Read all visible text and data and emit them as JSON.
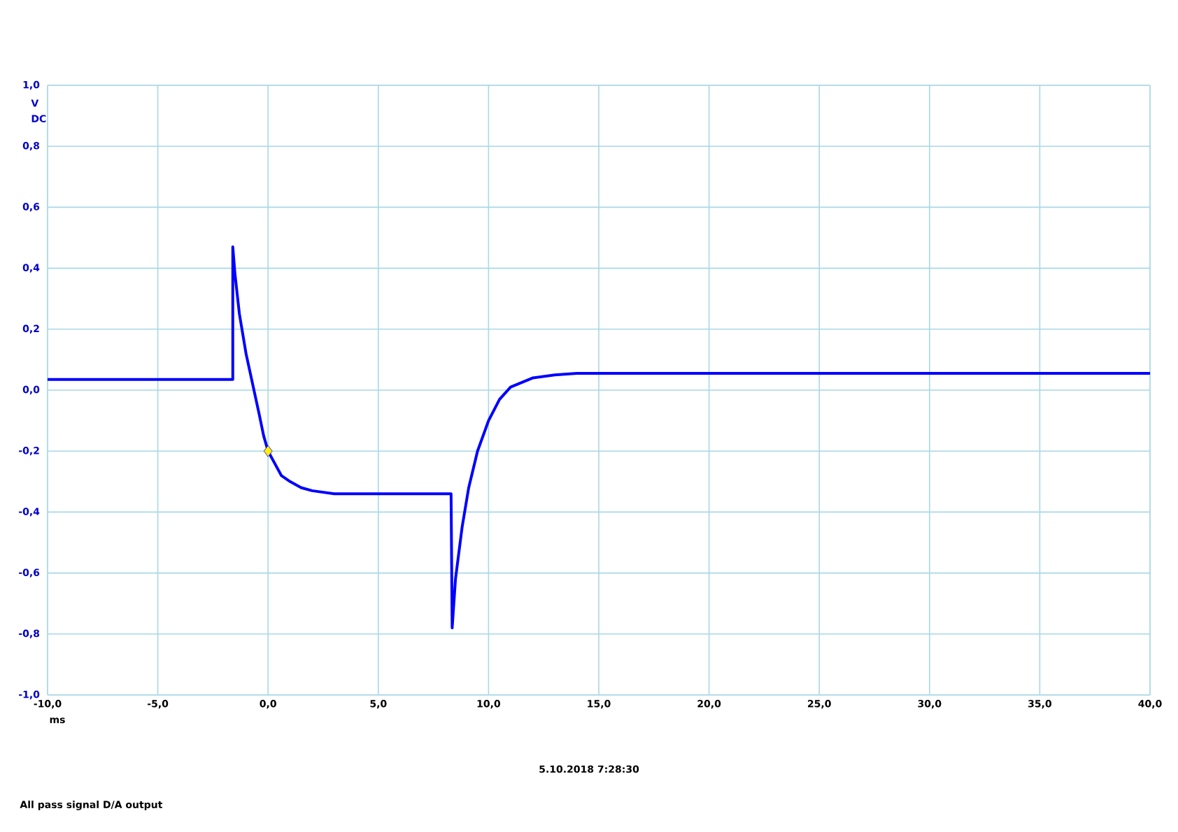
{
  "chart_data": {
    "type": "line",
    "xlabel": "ms",
    "ylabel": "V",
    "annotations": [
      "DC",
      "5.10.2018 7:28:30",
      "All pass signal D/A output"
    ],
    "xlim": [
      -10,
      40
    ],
    "ylim": [
      -1,
      1
    ],
    "xticks": [
      {
        "value": -10,
        "label": "-10,0"
      },
      {
        "value": -5,
        "label": "-5,0"
      },
      {
        "value": 0,
        "label": "0,0"
      },
      {
        "value": 5,
        "label": "5,0"
      },
      {
        "value": 10,
        "label": "10,0"
      },
      {
        "value": 15,
        "label": "15,0"
      },
      {
        "value": 20,
        "label": "20,0"
      },
      {
        "value": 25,
        "label": "25,0"
      },
      {
        "value": 30,
        "label": "30,0"
      },
      {
        "value": 35,
        "label": "35,0"
      },
      {
        "value": 40,
        "label": "40,0"
      }
    ],
    "yticks": [
      {
        "value": -1,
        "label": "-1,0"
      },
      {
        "value": -0.8,
        "label": "-0,8"
      },
      {
        "value": -0.6,
        "label": "-0,6"
      },
      {
        "value": -0.4,
        "label": "-0,4"
      },
      {
        "value": -0.2,
        "label": "-0,2"
      },
      {
        "value": 0,
        "label": "0,0"
      },
      {
        "value": 0.2,
        "label": "0,2"
      },
      {
        "value": 0.4,
        "label": "0,4"
      },
      {
        "value": 0.6,
        "label": "0,6"
      },
      {
        "value": 0.8,
        "label": "0,8"
      },
      {
        "value": 1,
        "label": "1,0"
      }
    ],
    "grid": true,
    "line_style": "solid",
    "series": [
      {
        "color": "#0000ff",
        "x": [
          -10,
          -1.6,
          -1.6,
          -1.5,
          -1.3,
          -1.0,
          -0.7,
          -0.4,
          -0.2,
          0,
          0.3,
          0.6,
          1.0,
          1.5,
          2.0,
          3.0,
          8.3,
          8.35,
          8.5,
          8.8,
          9.1,
          9.5,
          10,
          10.5,
          11,
          12,
          13,
          14,
          40
        ],
        "values": [
          0.035,
          0.035,
          0.47,
          0.38,
          0.25,
          0.12,
          0.02,
          -0.08,
          -0.15,
          -0.2,
          -0.24,
          -0.28,
          -0.3,
          -0.32,
          -0.33,
          -0.34,
          -0.34,
          -0.78,
          -0.62,
          -0.45,
          -0.32,
          -0.2,
          -0.1,
          -0.03,
          0.01,
          0.04,
          0.05,
          0.055,
          0.055
        ]
      },
      {
        "type": "scatter",
        "color": "#ffee00",
        "marker": "diamond",
        "x": [
          0
        ],
        "values": [
          -0.2
        ]
      }
    ]
  }
}
